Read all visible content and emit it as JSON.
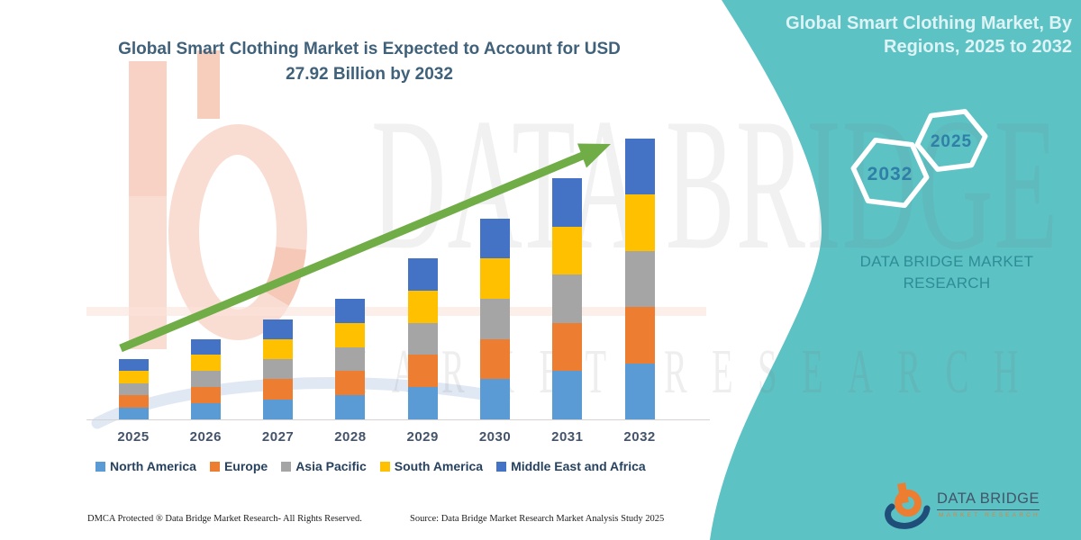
{
  "title": {
    "text": "Global Smart Clothing Market is Expected to Account for USD 27.92 Billion by 2032"
  },
  "panel": {
    "heading_line1": "Global Smart Clothing Market, By",
    "heading_line2": "Regions, 2025 to 2032",
    "hexagon_left": "2032",
    "hexagon_right": "2025",
    "brand_line1": "DATA BRIDGE MARKET",
    "brand_line2": "RESEARCH",
    "background_color": "#5CC2C4"
  },
  "watermark": {
    "brand": "DATA BRIDGE",
    "subtitle": "MARKET RESEARCH"
  },
  "chart_data": {
    "type": "bar",
    "stacked": true,
    "unit": "USD Billion",
    "title": "Global Smart Clothing Market is Expected to Account for USD 27.92 Billion by 2032",
    "categories": [
      "2025",
      "2026",
      "2027",
      "2028",
      "2029",
      "2030",
      "2031",
      "2032"
    ],
    "series": [
      {
        "name": "North America",
        "color": "#5B9BD5",
        "values": [
          1.2,
          1.6,
          2.0,
          2.4,
          3.2,
          4.0,
          4.8,
          5.58
        ]
      },
      {
        "name": "Europe",
        "color": "#ED7D31",
        "values": [
          1.2,
          1.6,
          2.0,
          2.4,
          3.2,
          4.0,
          4.8,
          5.58
        ]
      },
      {
        "name": "Asia Pacific",
        "color": "#A5A5A5",
        "values": [
          1.2,
          1.6,
          2.0,
          2.4,
          3.2,
          4.0,
          4.8,
          5.58
        ]
      },
      {
        "name": "South America",
        "color": "#FFC000",
        "values": [
          1.2,
          1.6,
          2.0,
          2.4,
          3.2,
          4.0,
          4.8,
          5.58
        ]
      },
      {
        "name": "Middle East and Africa",
        "color": "#4472C4",
        "values": [
          1.2,
          1.6,
          2.0,
          2.4,
          3.2,
          4.0,
          4.8,
          5.58
        ]
      }
    ],
    "totals": [
      6.0,
      8.0,
      10.0,
      12.0,
      16.0,
      20.0,
      24.0,
      27.92
    ],
    "ylim": [
      0,
      28
    ],
    "grid": false,
    "legend_position": "bottom",
    "annotations": [
      "green upward trend arrow from 2025 to 2032"
    ],
    "trend_arrow_color": "#70AD47"
  },
  "footer": {
    "dmca": "DMCA Protected ® Data Bridge Market Research-  All Rights Reserved.",
    "source": "Source: Data Bridge Market Research  Market Analysis Study 2025"
  },
  "logo": {
    "name": "DATA BRIDGE",
    "subtitle": "MARKET RESEARCH"
  }
}
